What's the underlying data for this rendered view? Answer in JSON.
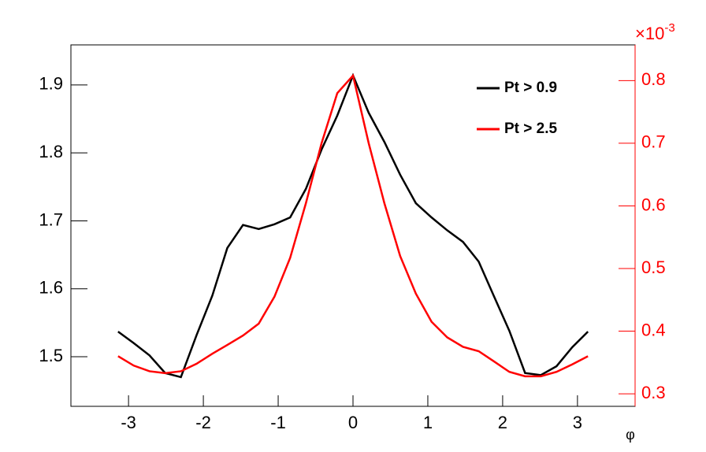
{
  "chart_data": {
    "type": "line",
    "x_label": "φ",
    "y2_multiplier": {
      "base": "×10",
      "exponent": "-3"
    },
    "x": [
      -3.14,
      -2.93,
      -2.72,
      -2.51,
      -2.3,
      -2.09,
      -1.88,
      -1.68,
      -1.47,
      -1.26,
      -1.05,
      -0.84,
      -0.63,
      -0.42,
      -0.21,
      0,
      0.21,
      0.42,
      0.63,
      0.84,
      1.05,
      1.26,
      1.47,
      1.68,
      1.88,
      2.09,
      2.3,
      2.51,
      2.72,
      2.93,
      3.14
    ],
    "series": [
      {
        "name": "Pt > 0.9",
        "color": "#000000",
        "axis": "y",
        "values": [
          1.537,
          1.52,
          1.502,
          1.476,
          1.47,
          1.532,
          1.59,
          1.66,
          1.694,
          1.688,
          1.695,
          1.705,
          1.747,
          1.805,
          1.855,
          1.914,
          1.859,
          1.816,
          1.768,
          1.726,
          1.705,
          1.686,
          1.669,
          1.64,
          1.59,
          1.538,
          1.476,
          1.473,
          1.486,
          1.514,
          1.537
        ]
      },
      {
        "name": "Pt > 2.5",
        "color": "#ff0000",
        "axis": "y2",
        "values": [
          0.36,
          0.345,
          0.336,
          0.333,
          0.336,
          0.348,
          0.364,
          0.378,
          0.393,
          0.412,
          0.455,
          0.517,
          0.604,
          0.7,
          0.78,
          0.808,
          0.7,
          0.604,
          0.52,
          0.46,
          0.415,
          0.39,
          0.375,
          0.368,
          0.352,
          0.335,
          0.328,
          0.328,
          0.335,
          0.347,
          0.36
        ]
      }
    ],
    "xlim": [
      -3.77,
      3.77
    ],
    "xticks": [
      -3,
      -2,
      -1,
      0,
      1,
      2,
      3
    ],
    "ylim": [
      1.427,
      1.959
    ],
    "yticks": [
      1.5,
      1.6,
      1.7,
      1.8,
      1.9
    ],
    "y2lim": [
      0.28,
      0.857
    ],
    "y2ticks": [
      0.3,
      0.4,
      0.5,
      0.6,
      0.7,
      0.8
    ],
    "y2_color": "#ff0000",
    "legend": "top-right"
  }
}
